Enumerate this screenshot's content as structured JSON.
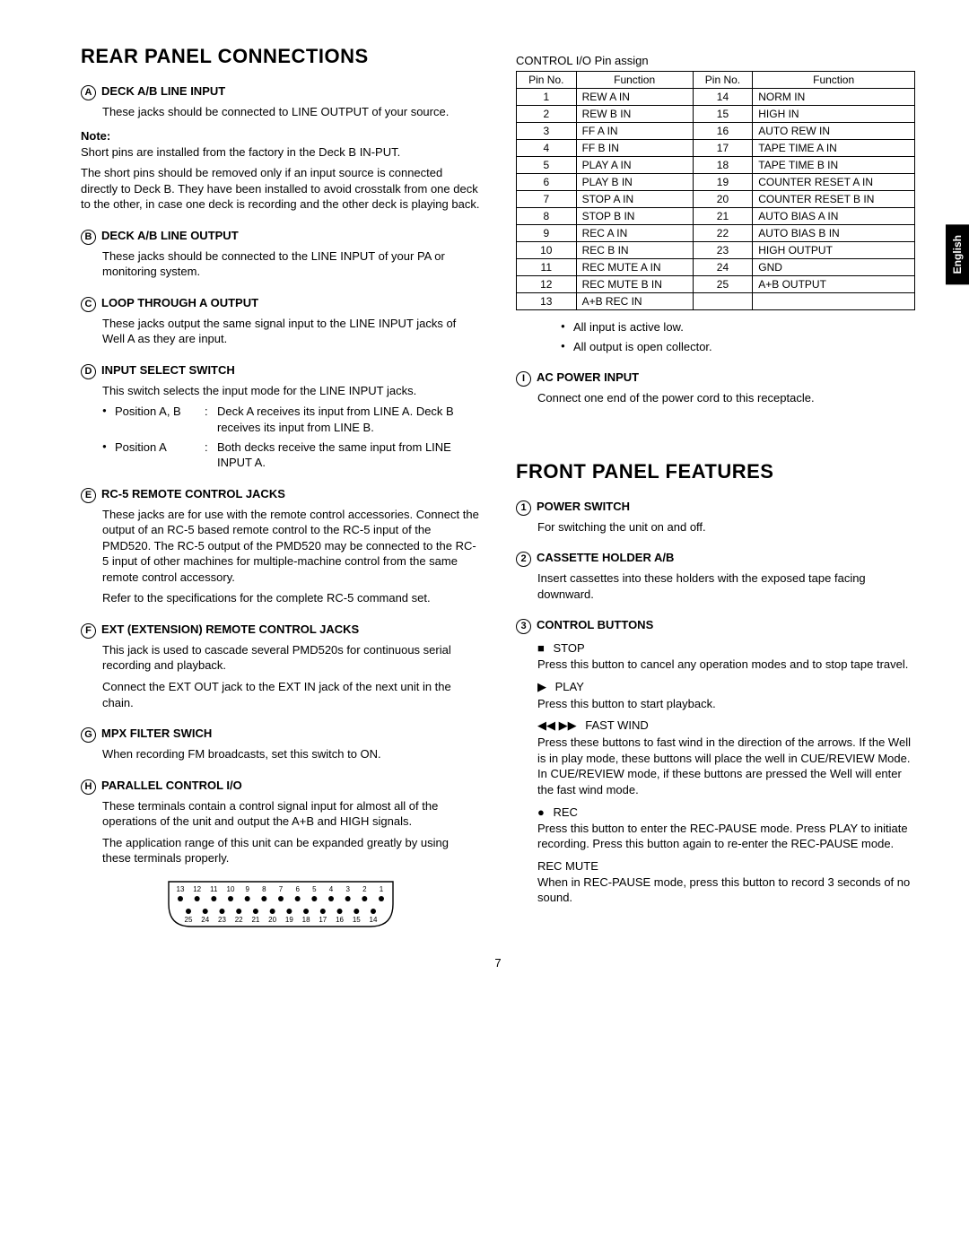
{
  "page": {
    "number": "7",
    "side_tab": "English"
  },
  "rear": {
    "title": "REAR PANEL CONNECTIONS",
    "items": {
      "A": {
        "letter": "A",
        "heading": "DECK A/B LINE INPUT",
        "text": "These jacks should be connected to LINE OUTPUT of your source."
      },
      "note": {
        "label": "Note:",
        "text1": "Short pins are installed from the factory in the Deck B IN-PUT.",
        "text2": "The short pins should be removed only if an input source is connected directly to Deck B. They have been installed to avoid crosstalk from one deck to the other, in case one deck is recording and the other deck is playing back."
      },
      "B": {
        "letter": "B",
        "heading": "DECK A/B LINE OUTPUT",
        "text": "These jacks should be connected to the LINE INPUT of your PA or monitoring system."
      },
      "C": {
        "letter": "C",
        "heading": "LOOP THROUGH A OUTPUT",
        "text": "These jacks output the same signal input to the LINE INPUT jacks of Well A as they are input."
      },
      "D": {
        "letter": "D",
        "heading": "INPUT SELECT SWITCH",
        "text": "This switch selects the input mode for the LINE INPUT jacks.",
        "posAB_label": "Position A, B",
        "posAB_text": "Deck A receives its input from LINE A. Deck B receives its input from LINE B.",
        "posA_label": "Position A",
        "posA_text": "Both decks receive the same input from LINE INPUT A."
      },
      "E": {
        "letter": "E",
        "heading": "RC-5 REMOTE CONTROL JACKS",
        "text1": "These jacks are for use with the remote control accessories. Connect the output of an RC-5 based remote control to the RC-5 input of the PMD520. The RC-5 output of the PMD520 may be connected to the RC-5 input of other machines for multiple-machine control from the same remote control accessory.",
        "text2": "Refer to the specifications for the complete RC-5 command set."
      },
      "F": {
        "letter": "F",
        "heading": "EXT (EXTENSION) REMOTE CONTROL JACKS",
        "text1": "This jack is used to cascade several PMD520s for continuous serial recording and playback.",
        "text2": "Connect the EXT OUT jack to the EXT IN jack of the next unit in the chain."
      },
      "G": {
        "letter": "G",
        "heading": "MPX FILTER SWICH",
        "text": "When recording FM broadcasts, set this switch to ON."
      },
      "H": {
        "letter": "H",
        "heading": "PARALLEL CONTROL I/O",
        "text1": "These terminals contain a control signal input for almost all of the operations of the unit and output the A+B and HIGH signals.",
        "text2": "The application range of this unit can be expanded greatly by using these terminals properly."
      },
      "I": {
        "letter": "I",
        "heading": "AC POWER INPUT",
        "text": "Connect one end of the power cord to this receptacle."
      }
    },
    "pin_table": {
      "title": "CONTROL I/O Pin assign",
      "headers": [
        "Pin No.",
        "Function",
        "Pin No.",
        "Function"
      ],
      "rows": [
        [
          "1",
          "REW A IN",
          "14",
          "NORM IN"
        ],
        [
          "2",
          "REW B IN",
          "15",
          "HIGH IN"
        ],
        [
          "3",
          "FF A IN",
          "16",
          "AUTO REW IN"
        ],
        [
          "4",
          "FF B IN",
          "17",
          "TAPE TIME A IN"
        ],
        [
          "5",
          "PLAY A IN",
          "18",
          "TAPE TIME B IN"
        ],
        [
          "6",
          "PLAY B IN",
          "19",
          "COUNTER RESET A IN"
        ],
        [
          "7",
          "STOP A IN",
          "20",
          "COUNTER RESET B IN"
        ],
        [
          "8",
          "STOP B IN",
          "21",
          "AUTO BIAS A IN"
        ],
        [
          "9",
          "REC A IN",
          "22",
          "AUTO BIAS B IN"
        ],
        [
          "10",
          "REC B IN",
          "23",
          "HIGH OUTPUT"
        ],
        [
          "11",
          "REC MUTE A IN",
          "24",
          "GND"
        ],
        [
          "12",
          "REC MUTE B IN",
          "25",
          "A+B OUTPUT"
        ],
        [
          "13",
          "A+B REC IN",
          "",
          ""
        ]
      ],
      "notes": [
        "All input is active low.",
        "All output is open collector."
      ]
    },
    "connector": {
      "top_pins": [
        "13",
        "12",
        "11",
        "10",
        "9",
        "8",
        "7",
        "6",
        "5",
        "4",
        "3",
        "2",
        "1"
      ],
      "bottom_pins": [
        "25",
        "24",
        "23",
        "22",
        "21",
        "20",
        "19",
        "18",
        "17",
        "16",
        "15",
        "14"
      ]
    }
  },
  "front": {
    "title": "FRONT PANEL FEATURES",
    "items": {
      "1": {
        "num": "1",
        "heading": "POWER SWITCH",
        "text": "For switching the unit on and off."
      },
      "2": {
        "num": "2",
        "heading": "CASSETTE HOLDER A/B",
        "text": "Insert cassettes into these holders with the exposed tape facing downward."
      },
      "3": {
        "num": "3",
        "heading": "CONTROL BUTTONS",
        "stop": {
          "sym": "■",
          "label": "STOP",
          "text": "Press this button to cancel any operation modes and to stop tape travel."
        },
        "play": {
          "sym": "▶",
          "label": "PLAY",
          "text": "Press this button to start playback."
        },
        "fast": {
          "sym": "◀◀ ▶▶",
          "label": "FAST WIND",
          "text": "Press these buttons to fast wind in the direction of the arrows. If the Well is in play mode, these buttons will place the well in CUE/REVIEW Mode. In CUE/REVIEW mode, if these buttons are pressed the Well will enter the fast wind mode."
        },
        "rec": {
          "sym": "●",
          "label": "REC",
          "text": "Press this button to enter the REC-PAUSE mode. Press PLAY to initiate recording. Press this button again to re-enter the REC-PAUSE mode."
        },
        "recmute": {
          "label": "REC MUTE",
          "text": "When in REC-PAUSE mode, press this button to record 3 seconds of no sound."
        }
      }
    }
  }
}
